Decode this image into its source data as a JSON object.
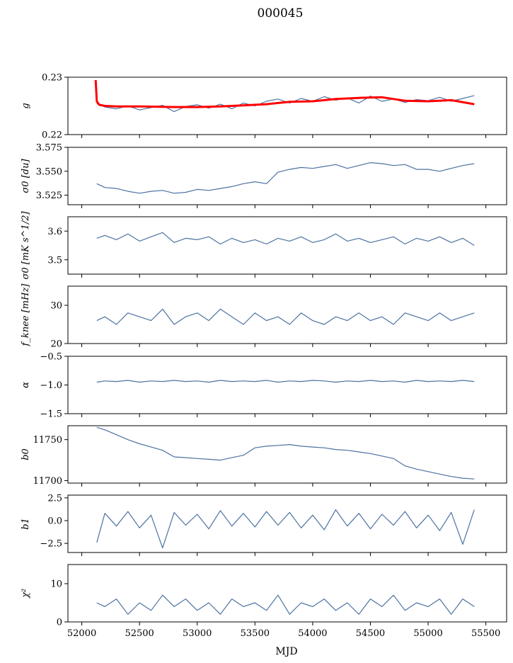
{
  "title": "000045",
  "colors": {
    "main": "#4c72a0",
    "overlay": "#ff0000",
    "frame": "#000000"
  },
  "chart_data": {
    "type": "line",
    "title": "000045",
    "xlabel": "MJD",
    "xlim": [
      51880,
      55680
    ],
    "xticks": [
      52000,
      52500,
      53000,
      53500,
      54000,
      54500,
      55000,
      55500
    ],
    "xtick_labels": [
      "52000",
      "52500",
      "53000",
      "53500",
      "54000",
      "54500",
      "55000",
      "55500"
    ],
    "grid": false,
    "panels": [
      {
        "ylabel": "g",
        "ylim": [
          0.22,
          0.23
        ],
        "yticks": [
          0.22,
          0.23
        ],
        "ytick_labels": [
          "0.22",
          "0.23"
        ],
        "series": [
          {
            "color": "#4c72a0",
            "x": [
              52130,
              52200,
              52300,
              52400,
              52500,
              52600,
              52700,
              52800,
              52900,
              53000,
              53100,
              53200,
              53300,
              53400,
              53500,
              53600,
              53700,
              53800,
              53900,
              54000,
              54100,
              54200,
              54300,
              54400,
              54500,
              54600,
              54700,
              54800,
              54900,
              55000,
              55100,
              55200,
              55300,
              55400
            ],
            "y": [
              0.2254,
              0.2248,
              0.2245,
              0.225,
              0.2243,
              0.2247,
              0.2251,
              0.224,
              0.2249,
              0.2252,
              0.2246,
              0.2253,
              0.2245,
              0.2255,
              0.225,
              0.2258,
              0.2262,
              0.2255,
              0.2263,
              0.2258,
              0.2266,
              0.226,
              0.2264,
              0.2255,
              0.2267,
              0.2258,
              0.2262,
              0.2256,
              0.2261,
              0.2259,
              0.2265,
              0.2258,
              0.2263,
              0.2268
            ]
          },
          {
            "color": "#ff0000",
            "x": [
              52120,
              52130,
              52150,
              52200,
              52300,
              52500,
              52800,
              53000,
              53200,
              53400,
              53600,
              53800,
              54000,
              54200,
              54400,
              54600,
              54800,
              55000,
              55200,
              55400
            ],
            "y": [
              0.2295,
              0.2258,
              0.2252,
              0.225,
              0.2249,
              0.2249,
              0.2248,
              0.2248,
              0.2249,
              0.2251,
              0.2253,
              0.2257,
              0.2258,
              0.2262,
              0.2264,
              0.2265,
              0.2259,
              0.2258,
              0.226,
              0.2253
            ]
          }
        ]
      },
      {
        "ylabel": "σ0 [du]",
        "ylim": [
          3.515,
          3.575
        ],
        "yticks": [
          3.525,
          3.55,
          3.575
        ],
        "ytick_labels": [
          "3.525",
          "3.550",
          "3.575"
        ],
        "series": [
          {
            "color": "#4c72a0",
            "x": [
              52130,
              52200,
              52300,
              52400,
              52500,
              52600,
              52700,
              52800,
              52900,
              53000,
              53100,
              53200,
              53300,
              53400,
              53500,
              53600,
              53700,
              53800,
              53900,
              54000,
              54100,
              54200,
              54300,
              54400,
              54500,
              54600,
              54700,
              54800,
              54900,
              55000,
              55100,
              55200,
              55300,
              55400
            ],
            "y": [
              3.537,
              3.533,
              3.532,
              3.529,
              3.527,
              3.529,
              3.53,
              3.527,
              3.528,
              3.531,
              3.53,
              3.532,
              3.534,
              3.537,
              3.539,
              3.537,
              3.549,
              3.552,
              3.554,
              3.553,
              3.555,
              3.557,
              3.553,
              3.556,
              3.559,
              3.558,
              3.556,
              3.557,
              3.552,
              3.552,
              3.55,
              3.553,
              3.556,
              3.558
            ]
          }
        ]
      },
      {
        "ylabel": "σ0 [mK s^1/2]",
        "ylim": [
          3.45,
          3.65
        ],
        "yticks": [
          3.5,
          3.6
        ],
        "ytick_labels": [
          "3.5",
          "3.6"
        ],
        "series": [
          {
            "color": "#4c72a0",
            "x": [
              52130,
              52200,
              52300,
              52400,
              52500,
              52600,
              52700,
              52800,
              52900,
              53000,
              53100,
              53200,
              53300,
              53400,
              53500,
              53600,
              53700,
              53800,
              53900,
              54000,
              54100,
              54200,
              54300,
              54400,
              54500,
              54600,
              54700,
              54800,
              54900,
              55000,
              55100,
              55200,
              55300,
              55400
            ],
            "y": [
              3.575,
              3.585,
              3.57,
              3.59,
              3.565,
              3.58,
              3.595,
              3.56,
              3.575,
              3.57,
              3.58,
              3.555,
              3.575,
              3.56,
              3.57,
              3.555,
              3.575,
              3.565,
              3.58,
              3.56,
              3.57,
              3.59,
              3.565,
              3.575,
              3.56,
              3.57,
              3.58,
              3.555,
              3.575,
              3.565,
              3.58,
              3.56,
              3.575,
              3.55
            ]
          }
        ]
      },
      {
        "ylabel": "f_knee [mHz]",
        "ylim": [
          20,
          35
        ],
        "yticks": [
          20,
          30
        ],
        "ytick_labels": [
          "20",
          "30"
        ],
        "series": [
          {
            "color": "#4c72a0",
            "x": [
              52130,
              52200,
              52300,
              52400,
              52500,
              52600,
              52700,
              52800,
              52900,
              53000,
              53100,
              53200,
              53300,
              53400,
              53500,
              53600,
              53700,
              53800,
              53900,
              54000,
              54100,
              54200,
              54300,
              54400,
              54500,
              54600,
              54700,
              54800,
              54900,
              55000,
              55100,
              55200,
              55300,
              55400
            ],
            "y": [
              26,
              27,
              25,
              28,
              27,
              26,
              29,
              25,
              27,
              28,
              26,
              29,
              27,
              25,
              28,
              26,
              27,
              25,
              28,
              26,
              25,
              27,
              26,
              28,
              26,
              27,
              25,
              28,
              27,
              26,
              28,
              26,
              27,
              28
            ]
          }
        ]
      },
      {
        "ylabel": "α",
        "ylim": [
          -1.5,
          -0.5
        ],
        "yticks": [
          -1.5,
          -1.0,
          -0.5
        ],
        "ytick_labels": [
          "−1.5",
          "−1.0",
          "−0.5"
        ],
        "series": [
          {
            "color": "#4c72a0",
            "x": [
              52130,
              52200,
              52300,
              52400,
              52500,
              52600,
              52700,
              52800,
              52900,
              53000,
              53100,
              53200,
              53300,
              53400,
              53500,
              53600,
              53700,
              53800,
              53900,
              54000,
              54100,
              54200,
              54300,
              54400,
              54500,
              54600,
              54700,
              54800,
              54900,
              55000,
              55100,
              55200,
              55300,
              55400
            ],
            "y": [
              -0.95,
              -0.93,
              -0.94,
              -0.92,
              -0.95,
              -0.93,
              -0.94,
              -0.92,
              -0.94,
              -0.93,
              -0.95,
              -0.92,
              -0.94,
              -0.93,
              -0.94,
              -0.92,
              -0.95,
              -0.93,
              -0.94,
              -0.92,
              -0.93,
              -0.95,
              -0.93,
              -0.94,
              -0.92,
              -0.94,
              -0.93,
              -0.95,
              -0.92,
              -0.94,
              -0.93,
              -0.94,
              -0.92,
              -0.94
            ]
          }
        ]
      },
      {
        "ylabel": "b0",
        "ylim": [
          11697,
          11767
        ],
        "yticks": [
          11700,
          11750
        ],
        "ytick_labels": [
          "11700",
          "11750"
        ],
        "series": [
          {
            "color": "#4c72a0",
            "x": [
              52130,
              52200,
              52300,
              52400,
              52500,
              52600,
              52700,
              52800,
              52900,
              53000,
              53100,
              53200,
              53300,
              53400,
              53500,
              53600,
              53700,
              53800,
              53900,
              54000,
              54100,
              54200,
              54300,
              54400,
              54500,
              54600,
              54700,
              54800,
              54900,
              55000,
              55100,
              55200,
              55300,
              55400
            ],
            "y": [
              11765,
              11762,
              11756,
              11750,
              11745,
              11741,
              11737,
              11729,
              11728,
              11727,
              11726,
              11725,
              11728,
              11731,
              11740,
              11742,
              11743,
              11744,
              11742,
              11741,
              11740,
              11738,
              11737,
              11735,
              11733,
              11730,
              11727,
              11718,
              11714,
              11711,
              11708,
              11705,
              11703,
              11702
            ]
          }
        ]
      },
      {
        "ylabel": "b1",
        "ylim": [
          -3.5,
          2.8
        ],
        "yticks": [
          -2.5,
          0.0,
          2.5
        ],
        "ytick_labels": [
          "−2.5",
          "0.0",
          "2.5"
        ],
        "series": [
          {
            "color": "#4c72a0",
            "x": [
              52130,
              52200,
              52300,
              52400,
              52500,
              52600,
              52700,
              52800,
              52900,
              53000,
              53100,
              53200,
              53300,
              53400,
              53500,
              53600,
              53700,
              53800,
              53900,
              54000,
              54100,
              54200,
              54300,
              54400,
              54500,
              54600,
              54700,
              54800,
              54900,
              55000,
              55100,
              55200,
              55300,
              55400
            ],
            "y": [
              -2.4,
              0.8,
              -0.6,
              1.0,
              -0.8,
              0.6,
              -3.0,
              0.9,
              -0.5,
              0.7,
              -0.9,
              1.1,
              -0.6,
              0.8,
              -0.7,
              1.0,
              -0.5,
              0.9,
              -0.8,
              0.6,
              -1.0,
              1.2,
              -0.6,
              0.8,
              -0.9,
              0.7,
              -0.5,
              1.0,
              -0.8,
              0.6,
              -1.1,
              0.9,
              -2.6,
              1.2
            ]
          }
        ]
      },
      {
        "ylabel": "χ²",
        "ylim": [
          0,
          15
        ],
        "yticks": [
          0,
          10
        ],
        "ytick_labels": [
          "0",
          "10"
        ],
        "series": [
          {
            "color": "#4c72a0",
            "x": [
              52130,
              52200,
              52300,
              52400,
              52500,
              52600,
              52700,
              52800,
              52900,
              53000,
              53100,
              53200,
              53300,
              53400,
              53500,
              53600,
              53700,
              53800,
              53900,
              54000,
              54100,
              54200,
              54300,
              54400,
              54500,
              54600,
              54700,
              54800,
              54900,
              55000,
              55100,
              55200,
              55300,
              55400
            ],
            "y": [
              5,
              4,
              6,
              2,
              5,
              3,
              7,
              4,
              6,
              3,
              5,
              2,
              6,
              4,
              5,
              3,
              7,
              2,
              5,
              4,
              6,
              3,
              5,
              2,
              6,
              4,
              7,
              3,
              5,
              4,
              6,
              2,
              6,
              4
            ]
          }
        ]
      }
    ]
  }
}
